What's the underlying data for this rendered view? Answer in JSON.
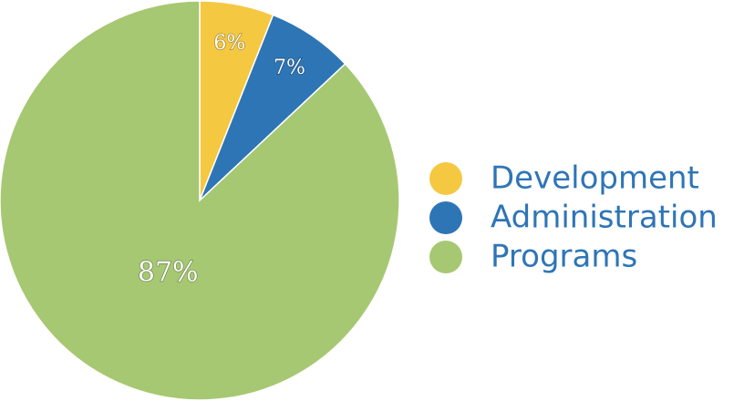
{
  "chart_data": {
    "type": "pie",
    "title": "",
    "start_angle_deg": 0,
    "direction": "clockwise",
    "legend_placement": "right",
    "label_color": "#ffffff",
    "legend_text_color": "#2e75b6",
    "slices": [
      {
        "name": "Development",
        "value": 6,
        "label": "6%",
        "color": "#f5c842"
      },
      {
        "name": "Administration",
        "value": 7,
        "label": "7%",
        "color": "#2e75b6"
      },
      {
        "name": "Programs",
        "value": 87,
        "label": "87%",
        "color": "#a6c872"
      }
    ]
  }
}
